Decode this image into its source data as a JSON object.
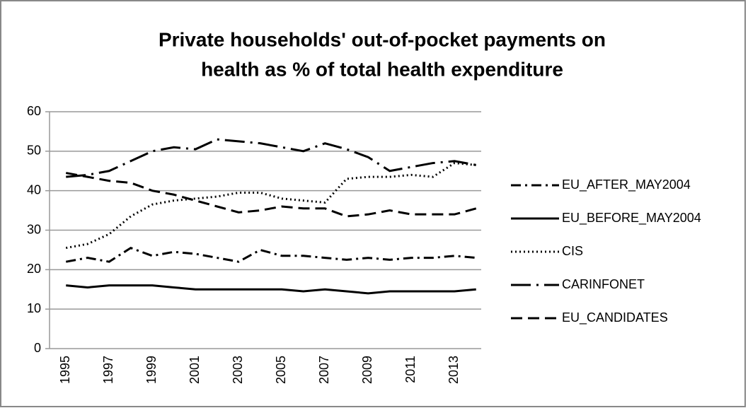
{
  "chart_data": {
    "type": "line",
    "title": [
      "Private households' out-of-pocket payments on",
      "health as % of total health expenditure"
    ],
    "categories": [
      "1995",
      null,
      "1997",
      null,
      "1999",
      null,
      "2001",
      null,
      "2003",
      null,
      "2005",
      null,
      "2007",
      null,
      "2009",
      null,
      "2011",
      null,
      "2013",
      null
    ],
    "series": [
      {
        "name": "EU_AFTER_MAY2004",
        "color": "#000000",
        "dash": "14,6,3,6",
        "values": [
          22,
          23,
          22,
          25.5,
          23.5,
          24.5,
          24,
          23,
          22,
          25,
          23.5,
          23.5,
          23,
          22.5,
          23,
          22.5,
          23,
          23,
          23.5,
          23
        ]
      },
      {
        "name": "EU_BEFORE_MAY2004",
        "color": "#000000",
        "dash": "none",
        "values": [
          16,
          15.5,
          16,
          16,
          16,
          15.5,
          15,
          15,
          15,
          15,
          15,
          14.5,
          15,
          14.5,
          14,
          14.5,
          14.5,
          14.5,
          14.5,
          15
        ]
      },
      {
        "name": "CIS",
        "color": "#000000",
        "dash": "2,4",
        "values": [
          25.5,
          26.5,
          29,
          33.5,
          36.5,
          37.5,
          38,
          38.5,
          39.5,
          39.5,
          38,
          37.5,
          37,
          43,
          43.5,
          43.5,
          44,
          43.5,
          47,
          46.5
        ]
      },
      {
        "name": "CARINFONET",
        "color": "#000000",
        "dash": "28,8,3,8",
        "values": [
          43.5,
          44,
          45,
          47.5,
          50,
          51,
          50.5,
          53,
          52.5,
          52,
          51,
          50,
          52,
          50.5,
          48.5,
          45,
          46,
          47,
          47.5,
          46.5
        ]
      },
      {
        "name": "EU_CANDIDATES",
        "color": "#000000",
        "dash": "16,8",
        "values": [
          44.5,
          43.5,
          42.5,
          42,
          40,
          39,
          37.5,
          36,
          34.5,
          35,
          36,
          35.5,
          35.5,
          33.5,
          34,
          35,
          34,
          34,
          34,
          35.5
        ]
      }
    ],
    "ylim": [
      0,
      60
    ],
    "yticks": [
      0,
      10,
      20,
      30,
      40,
      50,
      60
    ],
    "grid": true,
    "legend": "right"
  }
}
